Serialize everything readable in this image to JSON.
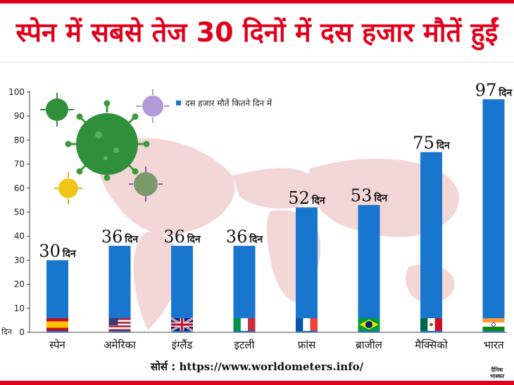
{
  "title": "स्पेन में सबसे तेज 30 दिनों में दस हजार मौतें हुईं",
  "source_label": "सोर्स :",
  "source_url": "https://www.worldometers.info/",
  "logo_line1": "दैनिक",
  "logo_line2": "भास्कर",
  "colors": {
    "bar": "#1976cf",
    "accent": "#e0001b",
    "map": "#f3d7d7"
  },
  "chart_data": {
    "type": "bar",
    "title": "स्पेन में सबसे तेज 30 दिनों में दस हजार मौतें हुईं",
    "series_name": "दस हजार मौतें कितने दिन में",
    "ylabel": "दिन",
    "ylim": [
      0,
      100
    ],
    "yticks": [
      0,
      10,
      20,
      30,
      40,
      50,
      60,
      70,
      80,
      90,
      100
    ],
    "value_unit": "दिन",
    "categories": [
      "स्पेन",
      "अमेरिका",
      "इंग्लैंड",
      "इटली",
      "फ्रांस",
      "ब्राजील",
      "मैक्सिको",
      "भारत"
    ],
    "values": [
      30,
      36,
      36,
      36,
      52,
      53,
      75,
      97
    ],
    "flags": [
      "spain-flag",
      "usa-flag",
      "uk-flag",
      "italy-flag",
      "france-flag",
      "brazil-flag",
      "mexico-flag",
      "india-flag"
    ]
  }
}
